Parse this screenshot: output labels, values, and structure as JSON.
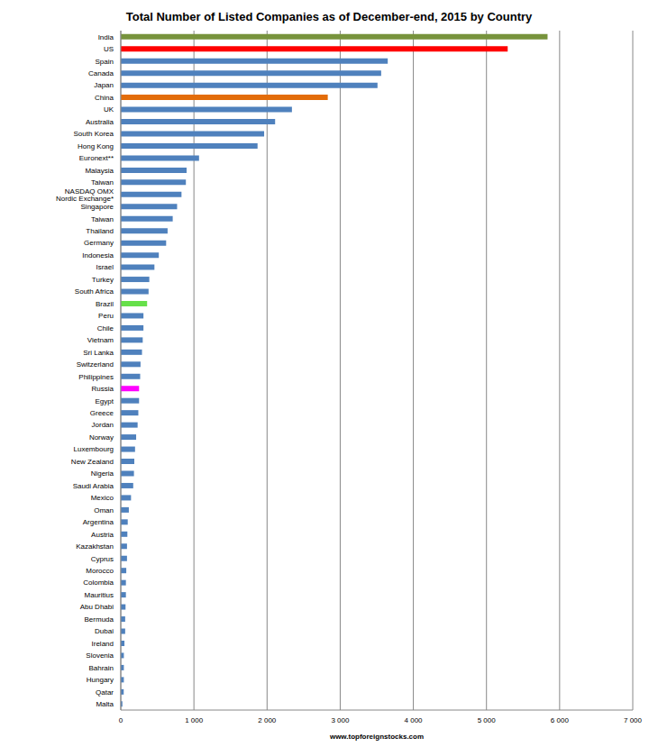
{
  "chart_data": {
    "type": "bar",
    "orientation": "horizontal",
    "title": "Total Number of Listed Companies as of December-end, 2015 by Country",
    "x_label": "www.topforeignstocks.com",
    "categories": [
      "India",
      "US",
      "Spain",
      "Canada",
      "Japan",
      "China",
      "UK",
      "Australia",
      "South Korea",
      "Hong Kong",
      "Euronext**",
      "Malaysia",
      "Taiwan",
      "NASDAQ OMX Nordic Exchange*",
      "Singapore",
      "Taiwan",
      "Thailand",
      "Germany",
      "Indonesia",
      "Israel",
      "Turkey",
      "South Africa",
      "Brazil",
      "Peru",
      "Chile",
      "Vietnam",
      "Sri Lanka",
      "Switzerland",
      "Philippines",
      "Russia",
      "Egypt",
      "Greece",
      "Jordan",
      "Norway",
      "Luxembourg",
      "New Zealand",
      "Nigeria",
      "Saudi Arabia",
      "Mexico",
      "Oman",
      "Argentina",
      "Austria",
      "Kazakhstan",
      "Cyprus",
      "Morocco",
      "Colombia",
      "Mauritius",
      "Abu Dhabi",
      "Bermuda",
      "Dubai",
      "Ireland",
      "Slovenia",
      "Bahrain",
      "Hungary",
      "Qatar",
      "Malta"
    ],
    "values": [
      5835,
      5290,
      3650,
      3560,
      3510,
      2830,
      2340,
      2110,
      1960,
      1870,
      1070,
      900,
      890,
      830,
      770,
      710,
      640,
      620,
      520,
      460,
      390,
      380,
      360,
      310,
      310,
      300,
      290,
      270,
      265,
      250,
      250,
      240,
      230,
      210,
      195,
      185,
      180,
      170,
      140,
      110,
      95,
      90,
      85,
      85,
      75,
      70,
      70,
      65,
      60,
      60,
      50,
      42,
      42,
      42,
      40,
      22
    ],
    "colors": [
      "#77933c",
      "#ff0000",
      "#4f81bd",
      "#4f81bd",
      "#4f81bd",
      "#e36c09",
      "#4f81bd",
      "#4f81bd",
      "#4f81bd",
      "#4f81bd",
      "#4f81bd",
      "#4f81bd",
      "#4f81bd",
      "#4f81bd",
      "#4f81bd",
      "#4f81bd",
      "#4f81bd",
      "#4f81bd",
      "#4f81bd",
      "#4f81bd",
      "#4f81bd",
      "#4f81bd",
      "#66e04a",
      "#4f81bd",
      "#4f81bd",
      "#4f81bd",
      "#4f81bd",
      "#4f81bd",
      "#4f81bd",
      "#ff00ff",
      "#4f81bd",
      "#4f81bd",
      "#4f81bd",
      "#4f81bd",
      "#4f81bd",
      "#4f81bd",
      "#4f81bd",
      "#4f81bd",
      "#4f81bd",
      "#4f81bd",
      "#4f81bd",
      "#4f81bd",
      "#4f81bd",
      "#4f81bd",
      "#4f81bd",
      "#4f81bd",
      "#4f81bd",
      "#4f81bd",
      "#4f81bd",
      "#4f81bd",
      "#4f81bd",
      "#4f81bd",
      "#4f81bd",
      "#4f81bd",
      "#4f81bd",
      "#4f81bd"
    ],
    "xlim": [
      0,
      7000
    ],
    "xticks": [
      0,
      {
        "value": 1000,
        "label": "1 000"
      },
      {
        "value": 2000,
        "label": "2 000"
      },
      {
        "value": 3000,
        "label": "3 000"
      },
      {
        "value": 4000,
        "label": "4 000"
      },
      {
        "value": 5000,
        "label": "5 000"
      },
      {
        "value": 6000,
        "label": "6 000"
      },
      {
        "value": 7000,
        "label": "7 000"
      }
    ],
    "grid": true
  }
}
